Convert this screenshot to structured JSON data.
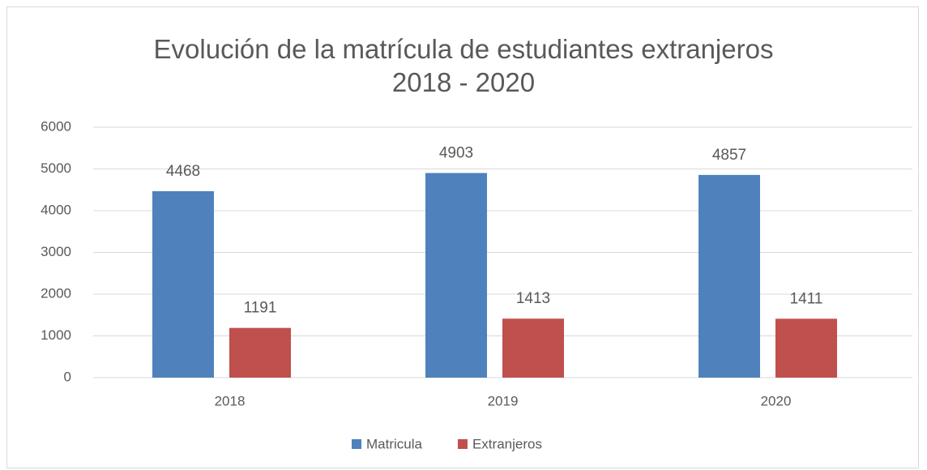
{
  "chart_data": {
    "type": "bar",
    "title": "Evolución de la matrícula de estudiantes extranjeros 2018 - 2020",
    "categories": [
      "2018",
      "2019",
      "2020"
    ],
    "series": [
      {
        "name": "Matricula",
        "color": "#4f81bd",
        "values": [
          4468,
          4903,
          4857
        ]
      },
      {
        "name": "Extranjeros",
        "color": "#c0504d",
        "values": [
          1191,
          1413,
          1411
        ]
      }
    ],
    "ylim": [
      0,
      6000
    ],
    "yticks": [
      0,
      1000,
      2000,
      3000,
      4000,
      5000,
      6000
    ],
    "grid": true,
    "legend": "bottom"
  }
}
